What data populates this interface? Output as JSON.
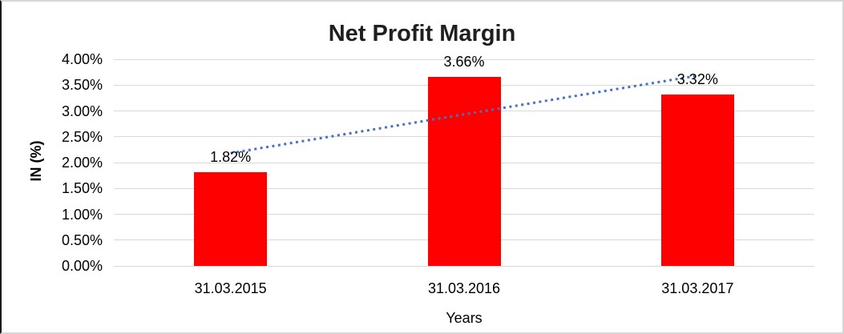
{
  "chart_data": {
    "type": "bar",
    "title": "Net Profit Margin",
    "xlabel": "Years",
    "ylabel": "IN (%)",
    "categories": [
      "31.03.2015",
      "31.03.2016",
      "31.03.2017"
    ],
    "values": [
      1.82,
      3.66,
      3.32
    ],
    "value_labels": [
      "1.82%",
      "3.66%",
      "3.32%"
    ],
    "ylim": [
      0,
      4
    ],
    "y_tick_step": 0.5,
    "y_tick_labels": [
      "0.00%",
      "0.50%",
      "1.00%",
      "1.50%",
      "2.00%",
      "2.50%",
      "3.00%",
      "3.50%",
      "4.00%"
    ],
    "grid": true,
    "legend": "none",
    "bar_color": "#FF0000",
    "gridline_color": "#D9D9D9",
    "trendline": {
      "type": "linear",
      "style": "dotted",
      "color": "#4472C4"
    }
  }
}
